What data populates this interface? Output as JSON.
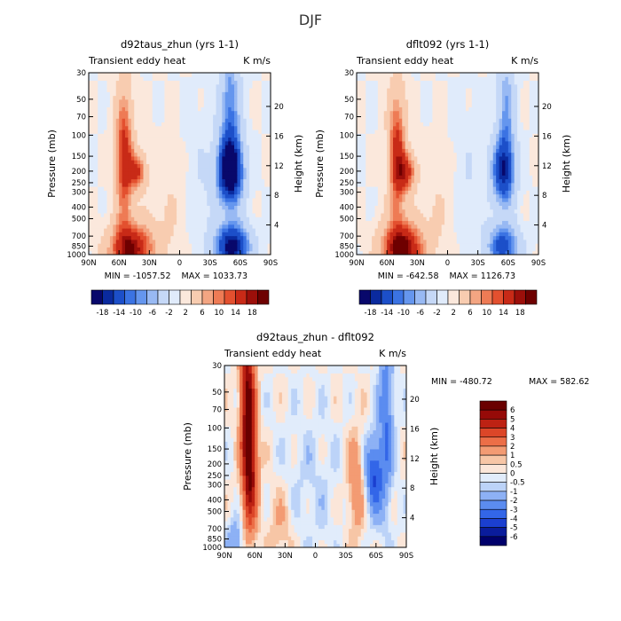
{
  "page_title": "DJF",
  "colors": {
    "palette18": [
      "#08086b",
      "#0a2a9e",
      "#1c4fc9",
      "#3b73e3",
      "#6596ee",
      "#98b9f3",
      "#c5d8f7",
      "#e0ebfb",
      "#fbe8dc",
      "#f8ccb0",
      "#f3a582",
      "#ee7b55",
      "#e3502f",
      "#c82a17",
      "#9c0f0a",
      "#6e0000"
    ],
    "palette6": [
      "#00006b",
      "#0a1c9c",
      "#1b3fd0",
      "#3366e8",
      "#5b8cf0",
      "#8db1f5",
      "#bcd3f8",
      "#e1ecfb",
      "#fbe6d9",
      "#f7c6a6",
      "#f39b73",
      "#ec6e47",
      "#dc4628",
      "#bd2213",
      "#960a08",
      "#6a0000"
    ]
  },
  "chart_data": [
    {
      "type": "heatmap",
      "title": "d92taus_zhun (yrs 1-1)",
      "subtitle_left": "Transient eddy heat",
      "subtitle_right": "K m/s",
      "xlabel": "",
      "ylabel": "Pressure (mb)",
      "ylabel_right": "Height (km)",
      "x_ticks": [
        "90N",
        "60N",
        "30N",
        "0",
        "30S",
        "60S",
        "90S"
      ],
      "x_range": [
        90,
        -90
      ],
      "y_ticks": [
        "30",
        "50",
        "70",
        "100",
        "150",
        "200",
        "250",
        "300",
        "400",
        "500",
        "700",
        "850",
        "1000"
      ],
      "y_range": [
        1000,
        30
      ],
      "y_right_ticks": [
        "4",
        "8",
        "12",
        "16",
        "20"
      ],
      "min": -1057.52,
      "max": 1033.73,
      "min_label": "MIN = -1057.52",
      "max_label": "MAX = 1033.73",
      "colorbar_labels": [
        "-18",
        "-14",
        "-10",
        "-6",
        "-2",
        "2",
        "6",
        "10",
        "14",
        "18"
      ],
      "colorbar_levels": [
        -18,
        -16,
        -14,
        -12,
        -10,
        -8,
        -6,
        -4,
        -2,
        0,
        2,
        4,
        6,
        8,
        10,
        12,
        14,
        16,
        18
      ],
      "features": [
        {
          "lat": 55,
          "p": 150,
          "lat_w": 6,
          "p_w": 0.9,
          "value": 14
        },
        {
          "lat": 48,
          "p": 900,
          "lat_w": 15,
          "p_w": 0.35,
          "value": 18
        },
        {
          "lat": 42,
          "p": 200,
          "lat_w": 6,
          "p_w": 0.25,
          "value": 12
        },
        {
          "lat": -50,
          "p": 200,
          "lat_w": 9,
          "p_w": 0.45,
          "value": -22
        },
        {
          "lat": -52,
          "p": 850,
          "lat_w": 12,
          "p_w": 0.3,
          "value": -20
        },
        {
          "lat": -50,
          "p": 60,
          "lat_w": 7,
          "p_w": 0.9,
          "value": -10
        },
        {
          "lat": 10,
          "p": 400,
          "lat_w": 15,
          "p_w": 0.8,
          "value": 2
        },
        {
          "lat": -20,
          "p": 250,
          "lat_w": 12,
          "p_w": 0.9,
          "value": -2
        }
      ]
    },
    {
      "type": "heatmap",
      "title": "dflt092 (yrs 1-1)",
      "subtitle_left": "Transient eddy heat",
      "subtitle_right": "K m/s",
      "xlabel": "",
      "ylabel": "Pressure (mb)",
      "ylabel_right": "Height (km)",
      "x_ticks": [
        "90N",
        "60N",
        "30N",
        "0",
        "30S",
        "60S",
        "90S"
      ],
      "x_range": [
        90,
        -90
      ],
      "y_ticks": [
        "30",
        "50",
        "70",
        "100",
        "150",
        "200",
        "250",
        "300",
        "400",
        "500",
        "700",
        "850",
        "1000"
      ],
      "y_range": [
        1000,
        30
      ],
      "y_right_ticks": [
        "4",
        "8",
        "12",
        "16",
        "20"
      ],
      "min": -642.58,
      "max": 1126.73,
      "min_label": "MIN = -642.58",
      "max_label": "MAX = 1126.73",
      "colorbar_labels": [
        "-18",
        "-14",
        "-10",
        "-6",
        "-2",
        "2",
        "6",
        "10",
        "14",
        "18"
      ],
      "colorbar_levels": [
        -18,
        -16,
        -14,
        -12,
        -10,
        -8,
        -6,
        -4,
        -2,
        0,
        2,
        4,
        6,
        8,
        10,
        12,
        14,
        16,
        18
      ],
      "features": [
        {
          "lat": 50,
          "p": 150,
          "lat_w": 6,
          "p_w": 0.9,
          "value": 14
        },
        {
          "lat": 45,
          "p": 900,
          "lat_w": 14,
          "p_w": 0.35,
          "value": 20
        },
        {
          "lat": 40,
          "p": 200,
          "lat_w": 6,
          "p_w": 0.25,
          "value": 12
        },
        {
          "lat": -55,
          "p": 200,
          "lat_w": 8,
          "p_w": 0.45,
          "value": -16
        },
        {
          "lat": -55,
          "p": 850,
          "lat_w": 11,
          "p_w": 0.3,
          "value": -14
        },
        {
          "lat": -58,
          "p": 60,
          "lat_w": 6,
          "p_w": 0.9,
          "value": -8
        },
        {
          "lat": 10,
          "p": 400,
          "lat_w": 15,
          "p_w": 0.8,
          "value": 2
        },
        {
          "lat": -20,
          "p": 250,
          "lat_w": 12,
          "p_w": 0.9,
          "value": -2
        }
      ]
    },
    {
      "type": "heatmap",
      "title": "d92taus_zhun - dflt092",
      "subtitle_left": "Transient eddy heat",
      "subtitle_right": "K m/s",
      "xlabel": "",
      "ylabel": "Pressure (mb)",
      "ylabel_right": "Height (km)",
      "x_ticks": [
        "90N",
        "60N",
        "30N",
        "0",
        "30S",
        "60S",
        "90S"
      ],
      "x_range": [
        90,
        -90
      ],
      "y_ticks": [
        "30",
        "50",
        "70",
        "100",
        "150",
        "200",
        "250",
        "300",
        "400",
        "500",
        "700",
        "850",
        "1000"
      ],
      "y_range": [
        1000,
        30
      ],
      "y_right_ticks": [
        "4",
        "8",
        "12",
        "16",
        "20"
      ],
      "min": -480.72,
      "max": 582.62,
      "min_label": "MIN = -480.72",
      "max_label": "MAX = 582.62",
      "colorbar_labels": [
        "6",
        "5",
        "4",
        "3",
        "2",
        "1",
        "0.5",
        "0",
        "-0.5",
        "-1",
        "-2",
        "-3",
        "-4",
        "-5",
        "-6"
      ],
      "colorbar_levels": [
        -6,
        -5,
        -4,
        -3,
        -2,
        -1,
        -0.5,
        0,
        0.5,
        1,
        2,
        3,
        4,
        5,
        6
      ],
      "features": [
        {
          "lat": 67,
          "p": 60,
          "lat_w": 5,
          "p_w": 1.2,
          "value": 6
        },
        {
          "lat": 64,
          "p": 250,
          "lat_w": 5,
          "p_w": 0.8,
          "value": 4
        },
        {
          "lat": -58,
          "p": 250,
          "lat_w": 6,
          "p_w": 0.5,
          "value": -4
        },
        {
          "lat": -70,
          "p": 80,
          "lat_w": 5,
          "p_w": 1.2,
          "value": -3
        },
        {
          "lat": -40,
          "p": 300,
          "lat_w": 6,
          "p_w": 0.7,
          "value": 2
        },
        {
          "lat": 35,
          "p": 700,
          "lat_w": 10,
          "p_w": 0.6,
          "value": 1
        },
        {
          "lat": 80,
          "p": 900,
          "lat_w": 6,
          "p_w": 0.3,
          "value": -2
        },
        {
          "lat": 5,
          "p": 300,
          "lat_w": 20,
          "p_w": 1.0,
          "value": -0.6
        }
      ]
    }
  ]
}
